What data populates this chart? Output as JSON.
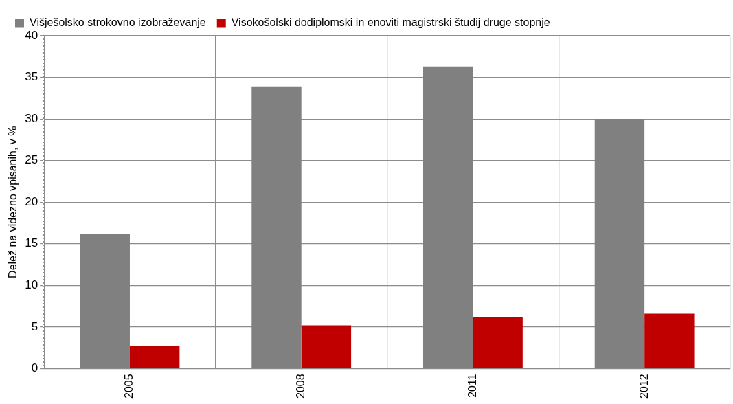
{
  "chart_data": {
    "type": "bar",
    "ylabel": "Delež na videzno vpisanih, v %",
    "categories": [
      "2005",
      "2008",
      "2011",
      "2012"
    ],
    "series": [
      {
        "name": "Višješolsko strokovno izobraževanje",
        "color": "#808080",
        "values": [
          16.2,
          33.9,
          36.3,
          30.0
        ]
      },
      {
        "name": "Visokošolski dodiplomski in enoviti magistrski študij druge stopnje",
        "color": "#c00000",
        "values": [
          2.7,
          5.2,
          6.2,
          6.6
        ]
      }
    ],
    "ylim": [
      0,
      40
    ],
    "yticks": [
      0,
      5,
      10,
      15,
      20,
      25,
      30,
      35,
      40
    ],
    "grid": true,
    "legend": "top left"
  }
}
